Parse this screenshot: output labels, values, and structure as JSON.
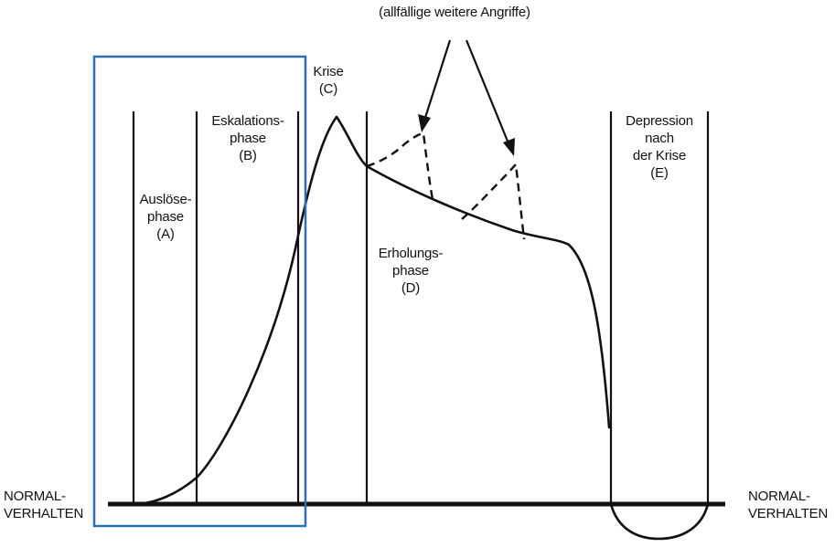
{
  "annotation_top": "(allfällige weitere Angriffe)",
  "phases": {
    "a": {
      "lines": [
        "Auslöse-",
        "phase",
        "(A)"
      ]
    },
    "b": {
      "lines": [
        "Eskalations-",
        "phase",
        "(B)"
      ]
    },
    "c": {
      "lines": [
        "Krise",
        "(C)"
      ]
    },
    "d": {
      "lines": [
        "Erholungs-",
        "phase",
        "(D)"
      ]
    },
    "e": {
      "lines": [
        "Depression",
        "nach",
        "der Krise",
        "(E)"
      ]
    }
  },
  "baseline": {
    "left": [
      "NORMAL-",
      "VERHALTEN"
    ],
    "right": [
      "NORMAL-",
      "VERHALTEN"
    ]
  },
  "colors": {
    "ink": "#111111",
    "highlight_box": "#2e6fb0",
    "background": "#ffffff"
  }
}
